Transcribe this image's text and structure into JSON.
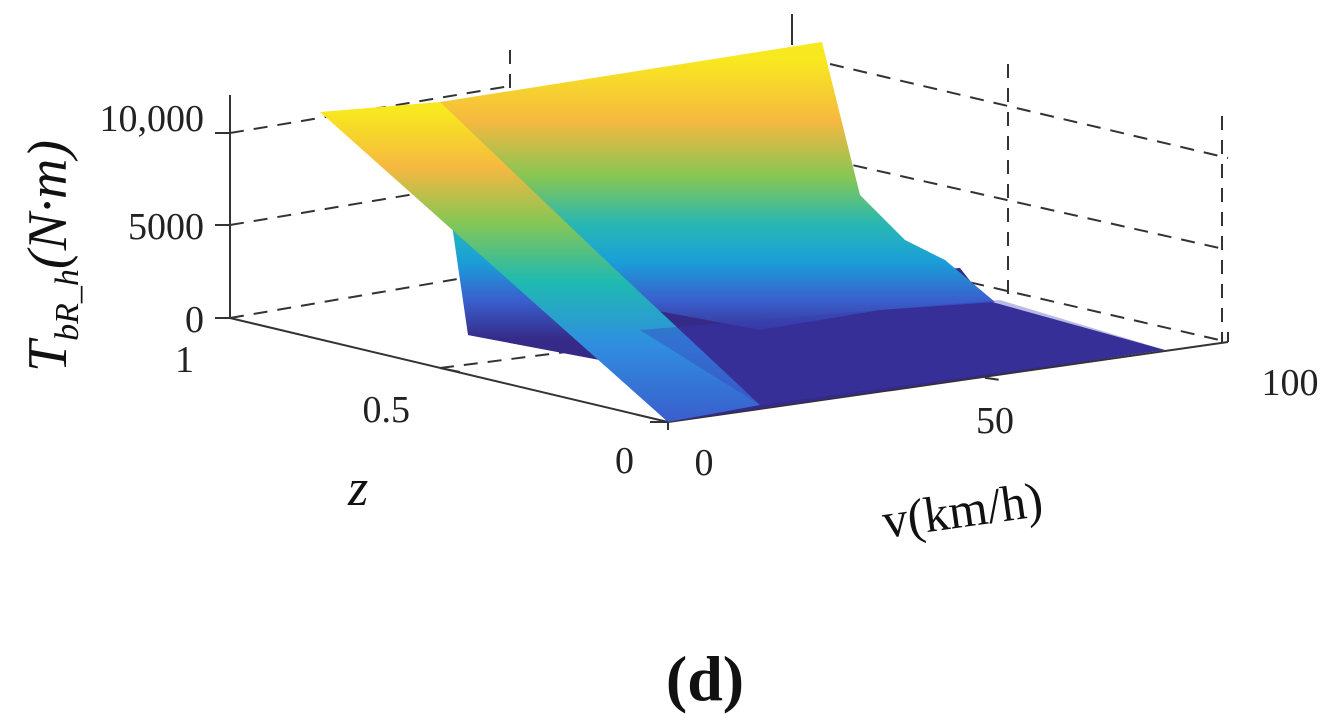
{
  "chart_data": {
    "type": "surface",
    "title": "",
    "panel_label": "(d)",
    "xlabel": "v(km/h)",
    "ylabel": "z",
    "zlabel_main": "T",
    "zlabel_sub": "bR_h",
    "zlabel_unit": "(N·m)",
    "x_ticks": [
      "0",
      "50",
      "100"
    ],
    "y_ticks": [
      "0",
      "0.5",
      "1"
    ],
    "z_ticks": [
      "0",
      "5000",
      "10,000"
    ],
    "xlim": [
      0,
      100
    ],
    "ylim": [
      0,
      1
    ],
    "zlim": [
      0,
      12000
    ],
    "grid": true,
    "colormap": "parula",
    "colors": [
      "#352a87",
      "#3a5fcd",
      "#1a9fd8",
      "#2ab8b0",
      "#85c655",
      "#f5b840",
      "#f8e81f"
    ],
    "surface_points": [
      {
        "v": 0,
        "z": 0,
        "T": 0
      },
      {
        "v": 10,
        "z": 0,
        "T": 0
      },
      {
        "v": 90,
        "z": 0,
        "T": 0
      },
      {
        "v": 0,
        "z": 0.2,
        "T": 10900
      },
      {
        "v": 0,
        "z": 1,
        "T": 10900
      },
      {
        "v": 10,
        "z": 1,
        "T": 10900
      },
      {
        "v": 40,
        "z": 1,
        "T": 10900
      },
      {
        "v": 55,
        "z": 1,
        "T": 4500
      },
      {
        "v": 65,
        "z": 1,
        "T": 2000
      },
      {
        "v": 90,
        "z": 1,
        "T": 0
      }
    ]
  }
}
